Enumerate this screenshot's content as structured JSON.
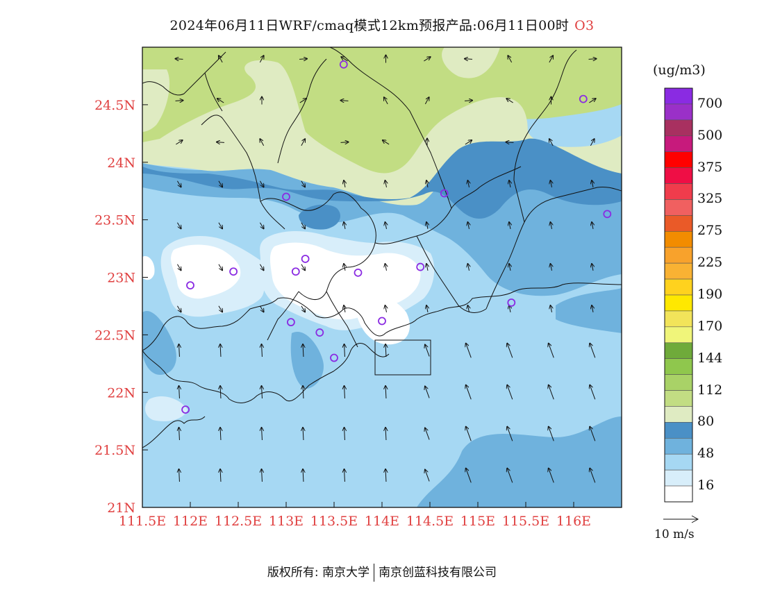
{
  "title": {
    "main": "2024年06月11日WRF/cmaq模式12km预报产品:06月11日00时",
    "variable": "O3"
  },
  "map": {
    "lon_range": [
      111.5,
      116.5
    ],
    "lat_range": [
      21,
      25
    ],
    "lon_ticks": [
      {
        "value": 111.5,
        "label": "111.5E"
      },
      {
        "value": 112,
        "label": "112E"
      },
      {
        "value": 112.5,
        "label": "112.5E"
      },
      {
        "value": 113,
        "label": "113E"
      },
      {
        "value": 113.5,
        "label": "113.5E"
      },
      {
        "value": 114,
        "label": "114E"
      },
      {
        "value": 114.5,
        "label": "114.5E"
      },
      {
        "value": 115,
        "label": "115E"
      },
      {
        "value": 115.5,
        "label": "115.5E"
      },
      {
        "value": 116,
        "label": "116E"
      }
    ],
    "lat_ticks": [
      {
        "value": 21,
        "label": "21N"
      },
      {
        "value": 21.5,
        "label": "21.5N"
      },
      {
        "value": 22,
        "label": "22N"
      },
      {
        "value": 22.5,
        "label": "22.5N"
      },
      {
        "value": 23,
        "label": "23N"
      },
      {
        "value": 23.5,
        "label": "23.5N"
      },
      {
        "value": 24,
        "label": "24N"
      },
      {
        "value": 24.5,
        "label": "24.5N"
      }
    ],
    "tick_color": "#e04040",
    "stations": [
      {
        "lon": 113.6,
        "lat": 24.85
      },
      {
        "lon": 116.1,
        "lat": 24.55
      },
      {
        "lon": 113.0,
        "lat": 23.7
      },
      {
        "lon": 114.65,
        "lat": 23.73
      },
      {
        "lon": 116.35,
        "lat": 23.55
      },
      {
        "lon": 113.2,
        "lat": 23.16
      },
      {
        "lon": 112.45,
        "lat": 23.05
      },
      {
        "lon": 113.1,
        "lat": 23.05
      },
      {
        "lon": 113.75,
        "lat": 23.04
      },
      {
        "lon": 114.4,
        "lat": 23.09
      },
      {
        "lon": 112.0,
        "lat": 22.93
      },
      {
        "lon": 115.35,
        "lat": 22.78
      },
      {
        "lon": 113.05,
        "lat": 22.61
      },
      {
        "lon": 113.35,
        "lat": 22.52
      },
      {
        "lon": 114.0,
        "lat": 22.62
      },
      {
        "lon": 113.5,
        "lat": 22.3
      },
      {
        "lon": 111.95,
        "lat": 21.85
      }
    ],
    "station_color": "#8a2be2"
  },
  "legend": {
    "unit": "(ug/m3)",
    "colors": [
      "#ffffff",
      "#d8eefa",
      "#a6d8f3",
      "#6fb2dd",
      "#4a90c6",
      "#dfebc2",
      "#c2dd83",
      "#a9d267",
      "#8fc74d",
      "#6faa3a",
      "#f0f57a",
      "#f2e45a",
      "#ffe800",
      "#ffd21e",
      "#f9b233",
      "#f8a22c",
      "#f28c00",
      "#ea5a28",
      "#f06060",
      "#f03c4c",
      "#ef0e45",
      "#ff0000",
      "#c71a7c",
      "#a83060",
      "#9a30c8",
      "#8a2be2"
    ],
    "labels": [
      "16",
      "48",
      "80",
      "112",
      "144",
      "170",
      "190",
      "225",
      "275",
      "325",
      "375",
      "500",
      "700"
    ]
  },
  "wind": {
    "reference_label": "10 m/s"
  },
  "copyright": {
    "left": "版权所有: 南京大学",
    "right": "南京创蓝科技有限公司"
  }
}
